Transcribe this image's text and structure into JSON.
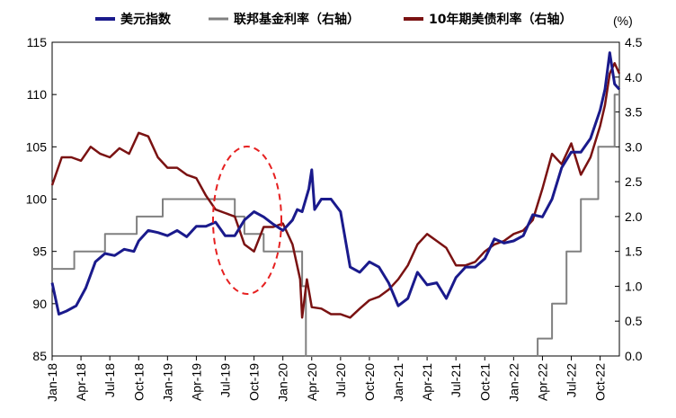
{
  "chart_data": {
    "type": "line",
    "title": "",
    "y_unit_right": "(%)",
    "left_axis": {
      "ylim": [
        85,
        115
      ],
      "ticks": [
        85,
        90,
        95,
        100,
        105,
        110,
        115
      ]
    },
    "right_axis": {
      "ylim": [
        0.0,
        4.5
      ],
      "ticks": [
        "0.0",
        "0.5",
        "1.0",
        "1.5",
        "2.0",
        "2.5",
        "3.0",
        "3.5",
        "4.0",
        "4.5"
      ]
    },
    "x_ticks": [
      "Jan-18",
      "Apr-18",
      "Jul-18",
      "Oct-18",
      "Jan-19",
      "Apr-19",
      "Jul-19",
      "Oct-19",
      "Jan-20",
      "Apr-20",
      "Jul-20",
      "Oct-20",
      "Jan-21",
      "Apr-21",
      "Jul-21",
      "Oct-21",
      "Jan-22",
      "Apr-22",
      "Jul-22",
      "Oct-22"
    ],
    "x_range_months": [
      0,
      59
    ],
    "series": [
      {
        "name": "美元指数",
        "axis": "left",
        "color": "#1a1a8c",
        "points": [
          [
            0,
            92
          ],
          [
            0.7,
            89
          ],
          [
            1.5,
            89.3
          ],
          [
            2.5,
            89.8
          ],
          [
            3.5,
            91.5
          ],
          [
            4.5,
            94
          ],
          [
            5.5,
            94.8
          ],
          [
            6.5,
            94.6
          ],
          [
            7.5,
            95.2
          ],
          [
            8.5,
            95
          ],
          [
            9,
            96
          ],
          [
            10,
            97
          ],
          [
            11,
            96.8
          ],
          [
            12,
            96.5
          ],
          [
            13,
            97
          ],
          [
            14,
            96.4
          ],
          [
            15,
            97.4
          ],
          [
            16,
            97.4
          ],
          [
            17,
            97.8
          ],
          [
            18,
            96.5
          ],
          [
            19,
            96.5
          ],
          [
            20,
            98
          ],
          [
            21,
            98.8
          ],
          [
            22,
            98.3
          ],
          [
            23,
            97.6
          ],
          [
            24,
            97
          ],
          [
            25,
            98
          ],
          [
            25.5,
            99
          ],
          [
            26,
            98.8
          ],
          [
            26.7,
            101
          ],
          [
            27,
            102.8
          ],
          [
            27.3,
            99
          ],
          [
            28,
            100
          ],
          [
            29,
            100
          ],
          [
            30,
            98.8
          ],
          [
            31,
            93.5
          ],
          [
            32,
            93
          ],
          [
            33,
            94
          ],
          [
            34,
            93.5
          ],
          [
            35,
            92
          ],
          [
            36,
            89.8
          ],
          [
            37,
            90.5
          ],
          [
            38,
            93
          ],
          [
            39,
            91.8
          ],
          [
            40,
            92
          ],
          [
            41,
            90.5
          ],
          [
            42,
            92.5
          ],
          [
            43,
            93.5
          ],
          [
            44,
            93.5
          ],
          [
            45,
            94.3
          ],
          [
            46,
            96.2
          ],
          [
            47,
            95.8
          ],
          [
            48,
            96
          ],
          [
            49,
            96.5
          ],
          [
            50,
            98.5
          ],
          [
            51,
            98.3
          ],
          [
            52,
            100
          ],
          [
            53,
            103
          ],
          [
            54,
            104.5
          ],
          [
            55,
            104.5
          ],
          [
            56,
            105.8
          ],
          [
            57,
            108.5
          ],
          [
            57.5,
            110.5
          ],
          [
            58,
            114
          ],
          [
            58.5,
            111
          ],
          [
            59,
            110.5
          ]
        ]
      },
      {
        "name": "联邦基金利率（右轴）",
        "axis": "right",
        "color": "#808080",
        "points": [
          [
            0,
            1.25
          ],
          [
            2.3,
            1.25
          ],
          [
            2.3,
            1.5
          ],
          [
            5.5,
            1.5
          ],
          [
            5.5,
            1.75
          ],
          [
            8.8,
            1.75
          ],
          [
            8.8,
            2.0
          ],
          [
            11.5,
            2.0
          ],
          [
            11.5,
            2.25
          ],
          [
            19,
            2.25
          ],
          [
            19,
            2.0
          ],
          [
            20,
            2.0
          ],
          [
            20,
            1.75
          ],
          [
            22,
            1.75
          ],
          [
            22,
            1.5
          ],
          [
            26,
            1.5
          ],
          [
            26,
            1.0
          ],
          [
            26.4,
            1.0
          ],
          [
            26.4,
            0.0
          ],
          [
            50.5,
            0.0
          ],
          [
            50.5,
            0.25
          ],
          [
            52,
            0.25
          ],
          [
            52,
            0.75
          ],
          [
            53.5,
            0.75
          ],
          [
            53.5,
            1.5
          ],
          [
            55,
            1.5
          ],
          [
            55,
            2.25
          ],
          [
            56.8,
            2.25
          ],
          [
            56.8,
            3.0
          ],
          [
            58.5,
            3.0
          ],
          [
            58.5,
            3.75
          ],
          [
            59,
            3.75
          ]
        ]
      },
      {
        "name": "10年期美债利率（右轴）",
        "axis": "right",
        "color": "#7a1212",
        "points": [
          [
            0,
            2.45
          ],
          [
            1,
            2.85
          ],
          [
            2,
            2.85
          ],
          [
            3,
            2.8
          ],
          [
            4,
            3.0
          ],
          [
            5,
            2.9
          ],
          [
            6,
            2.85
          ],
          [
            7,
            2.98
          ],
          [
            8,
            2.9
          ],
          [
            9,
            3.2
          ],
          [
            10,
            3.15
          ],
          [
            11,
            2.85
          ],
          [
            12,
            2.7
          ],
          [
            13,
            2.7
          ],
          [
            14,
            2.6
          ],
          [
            15,
            2.55
          ],
          [
            16,
            2.3
          ],
          [
            17,
            2.1
          ],
          [
            18,
            2.05
          ],
          [
            19,
            2.0
          ],
          [
            20,
            1.6
          ],
          [
            21,
            1.5
          ],
          [
            22,
            1.85
          ],
          [
            23,
            1.85
          ],
          [
            24,
            1.9
          ],
          [
            25,
            1.6
          ],
          [
            25.8,
            1.1
          ],
          [
            26,
            0.55
          ],
          [
            26.5,
            1.1
          ],
          [
            27,
            0.7
          ],
          [
            28,
            0.68
          ],
          [
            29,
            0.6
          ],
          [
            30,
            0.6
          ],
          [
            31,
            0.55
          ],
          [
            32,
            0.68
          ],
          [
            33,
            0.8
          ],
          [
            34,
            0.85
          ],
          [
            35,
            0.95
          ],
          [
            36,
            1.1
          ],
          [
            37,
            1.3
          ],
          [
            38,
            1.6
          ],
          [
            39,
            1.75
          ],
          [
            40,
            1.65
          ],
          [
            41,
            1.55
          ],
          [
            42,
            1.3
          ],
          [
            43,
            1.3
          ],
          [
            44,
            1.35
          ],
          [
            45,
            1.5
          ],
          [
            46,
            1.6
          ],
          [
            47,
            1.65
          ],
          [
            48,
            1.75
          ],
          [
            49,
            1.8
          ],
          [
            50,
            1.95
          ],
          [
            51,
            2.4
          ],
          [
            52,
            2.9
          ],
          [
            53,
            2.75
          ],
          [
            54,
            3.05
          ],
          [
            55,
            2.6
          ],
          [
            56,
            2.85
          ],
          [
            57,
            3.3
          ],
          [
            57.5,
            3.6
          ],
          [
            58,
            4.05
          ],
          [
            58.5,
            4.2
          ],
          [
            59,
            4.05
          ]
        ]
      }
    ],
    "annotation": "红色虚线椭圆圈示 2019年7月至10月",
    "legend_position": "top"
  }
}
